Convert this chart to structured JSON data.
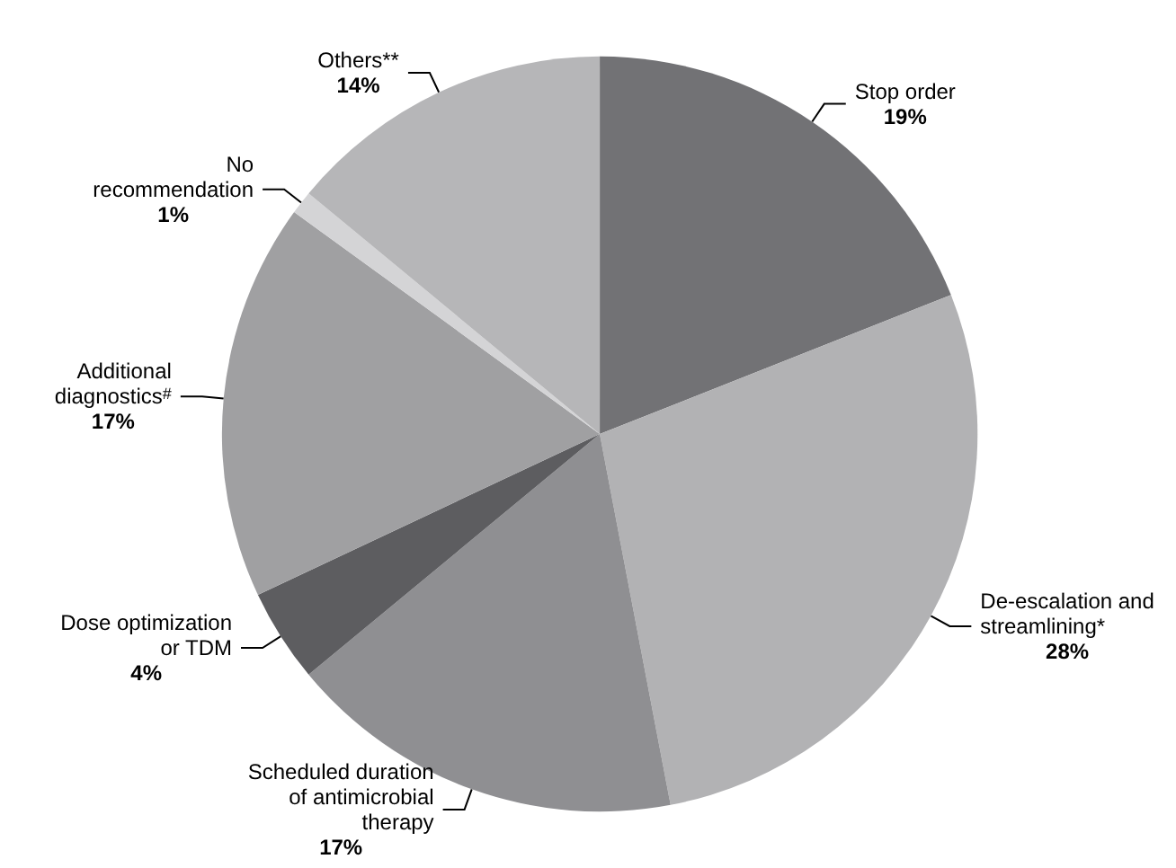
{
  "chart_data": {
    "type": "pie",
    "categories": [
      "Stop order",
      "De-escalation and\nstreamlining*",
      "Scheduled duration\nof antimicrobial\ntherapy",
      "Dose optimization\nor TDM",
      "Additional\ndiagnostics$^{#}$",
      "No\nrecommendation",
      "Others**"
    ],
    "values": [
      19,
      28,
      17,
      4,
      17,
      1,
      14
    ],
    "value_labels": [
      "19%",
      "28%",
      "17%",
      "4%",
      "17%",
      "1%",
      "14%"
    ],
    "colors": [
      "#727275",
      "#b2b2b4",
      "#8f8f92",
      "#5d5d60",
      "#a0a0a2",
      "#d4d4d6",
      "#b6b6b8"
    ]
  }
}
